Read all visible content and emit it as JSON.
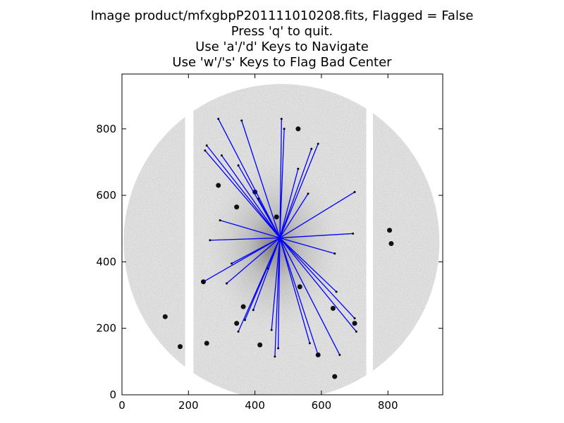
{
  "window": {
    "title_lines": [
      "Image product/mfxgbpP201111010208.fits, Flagged = False",
      "Press 'q' to quit.",
      "Use 'a'/'d' Keys to Navigate",
      "Use 'w'/'s' Keys to Flag Bad Center"
    ]
  },
  "chart_data": {
    "type": "scatter",
    "title": "Image product/mfxgbpP201111010208.fits, Flagged = False",
    "xlabel": "",
    "ylabel": "",
    "xlim": [
      0,
      965
    ],
    "ylim": [
      0,
      965
    ],
    "x_ticks": [
      0,
      200,
      400,
      600,
      800
    ],
    "y_ticks": [
      0,
      200,
      400,
      600,
      800
    ],
    "grid": false,
    "colors": {
      "lines": "#0000ff",
      "background": "#ffffff",
      "sky": "#e6e6e6"
    },
    "image": {
      "description_type": "circular-fisheye-sky-image",
      "center": [
        480,
        460
      ],
      "radius": 475,
      "gaps": [
        [
          190,
          215
        ],
        [
          735,
          755
        ]
      ]
    },
    "center_point": [
      475,
      472
    ],
    "lines_to": [
      [
        290,
        830
      ],
      [
        360,
        825
      ],
      [
        480,
        830
      ],
      [
        488,
        800
      ],
      [
        590,
        755
      ],
      [
        570,
        740
      ],
      [
        530,
        680
      ],
      [
        250,
        735
      ],
      [
        300,
        720
      ],
      [
        350,
        690
      ],
      [
        255,
        750
      ],
      [
        410,
        590
      ],
      [
        560,
        605
      ],
      [
        700,
        610
      ],
      [
        295,
        525
      ],
      [
        265,
        465
      ],
      [
        695,
        485
      ],
      [
        640,
        425
      ],
      [
        330,
        395
      ],
      [
        245,
        340
      ],
      [
        350,
        190
      ],
      [
        370,
        225
      ],
      [
        450,
        195
      ],
      [
        460,
        115
      ],
      [
        470,
        140
      ],
      [
        565,
        155
      ],
      [
        590,
        120
      ],
      [
        655,
        120
      ],
      [
        700,
        230
      ],
      [
        705,
        190
      ],
      [
        645,
        310
      ],
      [
        440,
        380
      ],
      [
        395,
        255
      ],
      [
        315,
        335
      ]
    ],
    "bright_sources": [
      [
        245,
        340
      ],
      [
        345,
        215
      ],
      [
        535,
        325
      ],
      [
        365,
        265
      ],
      [
        345,
        565
      ],
      [
        530,
        800
      ],
      [
        805,
        495
      ],
      [
        810,
        455
      ],
      [
        590,
        120
      ],
      [
        640,
        55
      ],
      [
        700,
        215
      ],
      [
        635,
        260
      ],
      [
        415,
        150
      ],
      [
        465,
        535
      ],
      [
        400,
        610
      ],
      [
        290,
        630
      ],
      [
        130,
        235
      ],
      [
        175,
        145
      ],
      [
        255,
        155
      ]
    ]
  }
}
